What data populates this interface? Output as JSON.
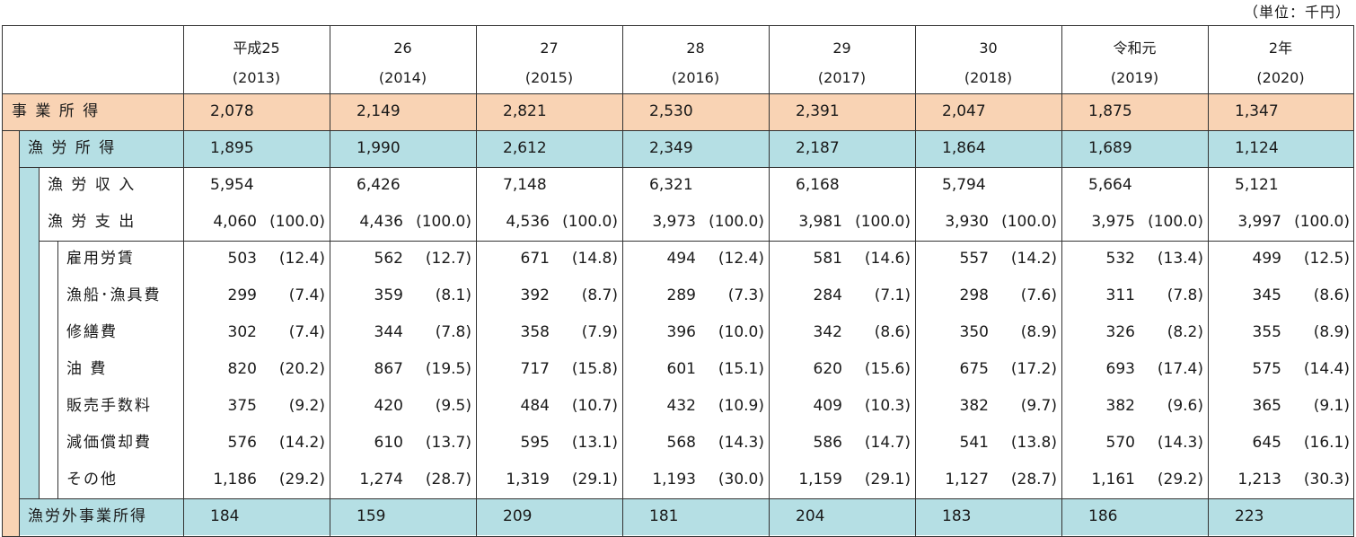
{
  "unit_note": "（単位：千円）",
  "colors": {
    "business_band": "#f9d3b4",
    "fishing_band": "#b5dfe4",
    "border": "#333333"
  },
  "headers": [
    {
      "line1": "平成25",
      "line2": "(2013)"
    },
    {
      "line1": "26",
      "line2": "(2014)"
    },
    {
      "line1": "27",
      "line2": "(2015)"
    },
    {
      "line1": "28",
      "line2": "(2016)"
    },
    {
      "line1": "29",
      "line2": "(2017)"
    },
    {
      "line1": "30",
      "line2": "(2018)"
    },
    {
      "line1": "令和元",
      "line2": "(2019)"
    },
    {
      "line1": "2年",
      "line2": "(2020)"
    }
  ],
  "rows": [
    {
      "label": "事 業 所 得",
      "values": [
        "2,078",
        "2,149",
        "2,821",
        "2,530",
        "2,391",
        "2,047",
        "1,875",
        "1,347"
      ]
    },
    {
      "label": "漁 労 所 得",
      "values": [
        "1,895",
        "1,990",
        "2,612",
        "2,349",
        "2,187",
        "1,864",
        "1,689",
        "1,124"
      ]
    },
    {
      "label": "漁 労 収 入",
      "values": [
        "5,954",
        "6,426",
        "7,148",
        "6,321",
        "6,168",
        "5,794",
        "5,664",
        "5,121"
      ]
    },
    {
      "label": "漁 労 支 出",
      "values": [
        "4,060",
        "4,436",
        "4,536",
        "3,973",
        "3,981",
        "3,930",
        "3,975",
        "3,997"
      ],
      "pcts": [
        "(100.0)",
        "(100.0)",
        "(100.0)",
        "(100.0)",
        "(100.0)",
        "(100.0)",
        "(100.0)",
        "(100.0)"
      ]
    },
    {
      "label": "雇用労賃",
      "values": [
        "503",
        "562",
        "671",
        "494",
        "581",
        "557",
        "532",
        "499"
      ],
      "pcts": [
        "(12.4)",
        "(12.7)",
        "(14.8)",
        "(12.4)",
        "(14.6)",
        "(14.2)",
        "(13.4)",
        "(12.5)"
      ]
    },
    {
      "label": "漁船･漁具費",
      "values": [
        "299",
        "359",
        "392",
        "289",
        "284",
        "298",
        "311",
        "345"
      ],
      "pcts": [
        "(7.4)",
        "(8.1)",
        "(8.7)",
        "(7.3)",
        "(7.1)",
        "(7.6)",
        "(7.8)",
        "(8.6)"
      ]
    },
    {
      "label": "修繕費",
      "values": [
        "302",
        "344",
        "358",
        "396",
        "342",
        "350",
        "326",
        "355"
      ],
      "pcts": [
        "(7.4)",
        "(7.8)",
        "(7.9)",
        "(10.0)",
        "(8.6)",
        "(8.9)",
        "(8.2)",
        "(8.9)"
      ]
    },
    {
      "label": "油 費",
      "values": [
        "820",
        "867",
        "717",
        "601",
        "620",
        "675",
        "693",
        "575"
      ],
      "pcts": [
        "(20.2)",
        "(19.5)",
        "(15.8)",
        "(15.1)",
        "(15.6)",
        "(17.2)",
        "(17.4)",
        "(14.4)"
      ]
    },
    {
      "label": "販売手数料",
      "values": [
        "375",
        "420",
        "484",
        "432",
        "409",
        "382",
        "382",
        "365"
      ],
      "pcts": [
        "(9.2)",
        "(9.5)",
        "(10.7)",
        "(10.9)",
        "(10.3)",
        "(9.7)",
        "(9.6)",
        "(9.1)"
      ]
    },
    {
      "label": "減価償却費",
      "values": [
        "576",
        "610",
        "595",
        "568",
        "586",
        "541",
        "570",
        "645"
      ],
      "pcts": [
        "(14.2)",
        "(13.7)",
        "(13.1)",
        "(14.3)",
        "(14.7)",
        "(13.8)",
        "(14.3)",
        "(16.1)"
      ]
    },
    {
      "label": "その他",
      "values": [
        "1,186",
        "1,274",
        "1,319",
        "1,193",
        "1,159",
        "1,127",
        "1,161",
        "1,213"
      ],
      "pcts": [
        "(29.2)",
        "(28.7)",
        "(29.1)",
        "(30.0)",
        "(29.1)",
        "(28.7)",
        "(29.2)",
        "(30.3)"
      ]
    },
    {
      "label": "漁労外事業所得",
      "values": [
        "184",
        "159",
        "209",
        "181",
        "204",
        "183",
        "186",
        "223"
      ]
    }
  ]
}
